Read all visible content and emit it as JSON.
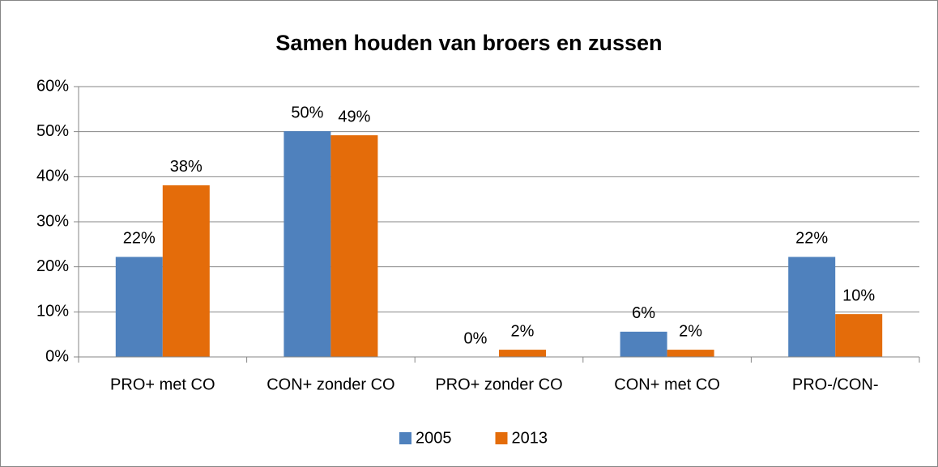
{
  "chart_data": {
    "type": "bar",
    "title": "Samen houden van broers en zussen",
    "categories": [
      "PRO+ met CO",
      "CON+ zonder CO",
      "PRO+ zonder CO",
      "CON+ met CO",
      "PRO-/CON-"
    ],
    "series": [
      {
        "name": "2005",
        "color": "#4f81bd",
        "values": [
          22.2,
          50.1,
          0,
          5.6,
          22.2
        ],
        "value_labels": [
          "22%",
          "50%",
          "0%",
          "6%",
          "22%"
        ]
      },
      {
        "name": "2013",
        "color": "#e46c0a",
        "values": [
          38.1,
          49.2,
          1.6,
          1.6,
          9.5
        ],
        "value_labels": [
          "38%",
          "49%",
          "2%",
          "2%",
          "10%"
        ]
      }
    ],
    "ylim": [
      0,
      60
    ],
    "yticks": [
      {
        "value": 0,
        "label": "0%"
      },
      {
        "value": 10,
        "label": "10%"
      },
      {
        "value": 20,
        "label": "20%"
      },
      {
        "value": 30,
        "label": "30%"
      },
      {
        "value": 40,
        "label": "40%"
      },
      {
        "value": 50,
        "label": "50%"
      },
      {
        "value": 60,
        "label": "60%"
      }
    ],
    "grid": true,
    "legend": "bottom"
  }
}
